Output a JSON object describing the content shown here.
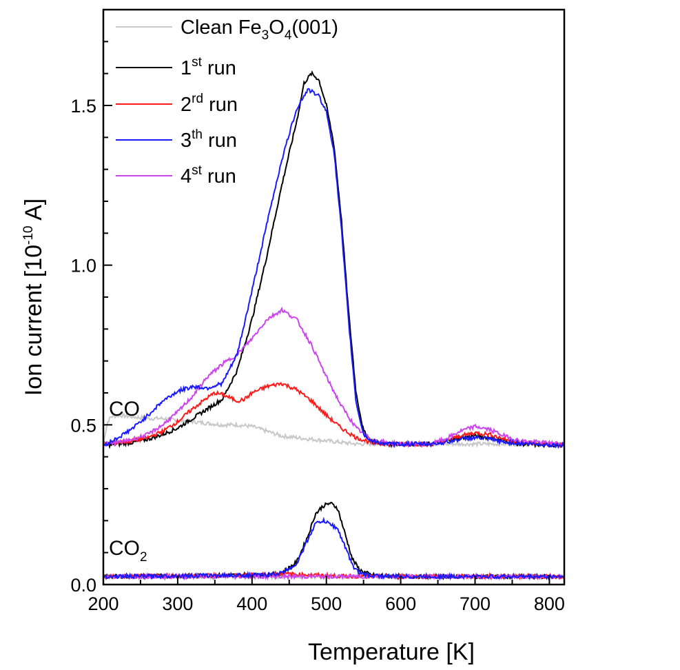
{
  "chart_data": {
    "type": "line",
    "xlabel": "Temperature [K]",
    "ylabel": {
      "main": "Ion current [10",
      "exp": "-10",
      "unit": " A]"
    },
    "xlim": [
      200,
      820
    ],
    "ylim": [
      0.0,
      1.8
    ],
    "xticks": [
      "200",
      "300",
      "400",
      "500",
      "600",
      "700",
      "800"
    ],
    "yticks": [
      "0.0",
      "0.5",
      "1.0",
      "1.5"
    ],
    "grid": false,
    "legend_position": "top-left",
    "annotations": {
      "co": "CO",
      "co2": {
        "base": "CO",
        "sub": "2"
      }
    },
    "series": [
      {
        "key": "clean",
        "legend": {
          "prefix": "Clean Fe",
          "s1": "3",
          "mid": "O",
          "s2": "4",
          "suffix": "(001)"
        },
        "color": "#c8c8c8",
        "co": [
          [
            200,
            0.44
          ],
          [
            203,
            0.48
          ],
          [
            206,
            0.51
          ],
          [
            210,
            0.525
          ],
          [
            220,
            0.53
          ],
          [
            240,
            0.525
          ],
          [
            260,
            0.52
          ],
          [
            280,
            0.52
          ],
          [
            300,
            0.515
          ],
          [
            320,
            0.51
          ],
          [
            340,
            0.505
          ],
          [
            360,
            0.5
          ],
          [
            380,
            0.5
          ],
          [
            400,
            0.495
          ],
          [
            420,
            0.48
          ],
          [
            440,
            0.465
          ],
          [
            460,
            0.46
          ],
          [
            480,
            0.455
          ],
          [
            500,
            0.45
          ],
          [
            520,
            0.445
          ],
          [
            540,
            0.44
          ],
          [
            560,
            0.44
          ],
          [
            600,
            0.44
          ],
          [
            650,
            0.44
          ],
          [
            700,
            0.44
          ],
          [
            750,
            0.44
          ],
          [
            820,
            0.438
          ]
        ],
        "co2": [
          [
            200,
            0.025
          ],
          [
            820,
            0.025
          ]
        ]
      },
      {
        "key": "run1",
        "legend": {
          "prefix": "1",
          "sup": "st",
          "suffix": " run"
        },
        "color": "#000000",
        "co": [
          [
            200,
            0.435
          ],
          [
            220,
            0.44
          ],
          [
            240,
            0.445
          ],
          [
            260,
            0.455
          ],
          [
            280,
            0.47
          ],
          [
            300,
            0.49
          ],
          [
            320,
            0.52
          ],
          [
            340,
            0.55
          ],
          [
            360,
            0.58
          ],
          [
            380,
            0.67
          ],
          [
            400,
            0.83
          ],
          [
            420,
            1.03
          ],
          [
            440,
            1.25
          ],
          [
            460,
            1.45
          ],
          [
            470,
            1.57
          ],
          [
            480,
            1.6
          ],
          [
            490,
            1.58
          ],
          [
            500,
            1.5
          ],
          [
            510,
            1.38
          ],
          [
            520,
            1.15
          ],
          [
            530,
            0.85
          ],
          [
            540,
            0.6
          ],
          [
            550,
            0.48
          ],
          [
            560,
            0.45
          ],
          [
            580,
            0.44
          ],
          [
            600,
            0.44
          ],
          [
            640,
            0.44
          ],
          [
            660,
            0.45
          ],
          [
            680,
            0.46
          ],
          [
            700,
            0.465
          ],
          [
            720,
            0.46
          ],
          [
            740,
            0.45
          ],
          [
            760,
            0.44
          ],
          [
            820,
            0.435
          ]
        ],
        "co2": [
          [
            200,
            0.025
          ],
          [
            420,
            0.03
          ],
          [
            440,
            0.035
          ],
          [
            460,
            0.07
          ],
          [
            475,
            0.15
          ],
          [
            485,
            0.22
          ],
          [
            495,
            0.245
          ],
          [
            505,
            0.255
          ],
          [
            515,
            0.24
          ],
          [
            525,
            0.16
          ],
          [
            535,
            0.08
          ],
          [
            545,
            0.045
          ],
          [
            560,
            0.03
          ],
          [
            600,
            0.025
          ],
          [
            820,
            0.025
          ]
        ]
      },
      {
        "key": "run2",
        "legend": {
          "prefix": "2",
          "sup": "rd",
          "suffix": " run"
        },
        "color": "#ff1a1a",
        "co": [
          [
            200,
            0.44
          ],
          [
            220,
            0.445
          ],
          [
            240,
            0.45
          ],
          [
            260,
            0.46
          ],
          [
            280,
            0.48
          ],
          [
            300,
            0.51
          ],
          [
            320,
            0.55
          ],
          [
            340,
            0.585
          ],
          [
            350,
            0.6
          ],
          [
            360,
            0.595
          ],
          [
            370,
            0.585
          ],
          [
            380,
            0.575
          ],
          [
            390,
            0.58
          ],
          [
            400,
            0.6
          ],
          [
            420,
            0.62
          ],
          [
            440,
            0.63
          ],
          [
            460,
            0.61
          ],
          [
            480,
            0.575
          ],
          [
            500,
            0.53
          ],
          [
            520,
            0.49
          ],
          [
            540,
            0.46
          ],
          [
            560,
            0.445
          ],
          [
            580,
            0.44
          ],
          [
            600,
            0.44
          ],
          [
            640,
            0.44
          ],
          [
            660,
            0.45
          ],
          [
            680,
            0.465
          ],
          [
            700,
            0.475
          ],
          [
            720,
            0.47
          ],
          [
            740,
            0.455
          ],
          [
            760,
            0.445
          ],
          [
            820,
            0.438
          ]
        ],
        "co2": [
          [
            200,
            0.025
          ],
          [
            400,
            0.03
          ],
          [
            440,
            0.034
          ],
          [
            480,
            0.03
          ],
          [
            520,
            0.026
          ],
          [
            820,
            0.025
          ]
        ]
      },
      {
        "key": "run3",
        "legend": {
          "prefix": "3",
          "sup": "th",
          "suffix": " run"
        },
        "color": "#1a1aff",
        "co": [
          [
            200,
            0.435
          ],
          [
            220,
            0.46
          ],
          [
            240,
            0.49
          ],
          [
            260,
            0.53
          ],
          [
            280,
            0.575
          ],
          [
            300,
            0.605
          ],
          [
            320,
            0.62
          ],
          [
            340,
            0.615
          ],
          [
            360,
            0.63
          ],
          [
            380,
            0.72
          ],
          [
            400,
            0.92
          ],
          [
            420,
            1.13
          ],
          [
            440,
            1.33
          ],
          [
            460,
            1.49
          ],
          [
            475,
            1.55
          ],
          [
            490,
            1.53
          ],
          [
            500,
            1.48
          ],
          [
            510,
            1.36
          ],
          [
            520,
            1.12
          ],
          [
            530,
            0.82
          ],
          [
            540,
            0.57
          ],
          [
            550,
            0.47
          ],
          [
            560,
            0.45
          ],
          [
            580,
            0.44
          ],
          [
            600,
            0.44
          ],
          [
            640,
            0.44
          ],
          [
            660,
            0.445
          ],
          [
            680,
            0.455
          ],
          [
            700,
            0.46
          ],
          [
            720,
            0.455
          ],
          [
            740,
            0.445
          ],
          [
            820,
            0.435
          ]
        ],
        "co2": [
          [
            200,
            0.025
          ],
          [
            420,
            0.03
          ],
          [
            440,
            0.036
          ],
          [
            460,
            0.065
          ],
          [
            475,
            0.14
          ],
          [
            485,
            0.19
          ],
          [
            495,
            0.2
          ],
          [
            505,
            0.19
          ],
          [
            515,
            0.175
          ],
          [
            525,
            0.12
          ],
          [
            535,
            0.06
          ],
          [
            545,
            0.035
          ],
          [
            560,
            0.028
          ],
          [
            600,
            0.025
          ],
          [
            820,
            0.025
          ]
        ]
      },
      {
        "key": "run4",
        "legend": {
          "prefix": "4",
          "sup": "st",
          "suffix": " run"
        },
        "color": "#cc44ee",
        "co": [
          [
            200,
            0.44
          ],
          [
            220,
            0.445
          ],
          [
            240,
            0.455
          ],
          [
            260,
            0.47
          ],
          [
            280,
            0.5
          ],
          [
            300,
            0.54
          ],
          [
            320,
            0.59
          ],
          [
            340,
            0.65
          ],
          [
            360,
            0.69
          ],
          [
            380,
            0.72
          ],
          [
            400,
            0.77
          ],
          [
            420,
            0.83
          ],
          [
            440,
            0.86
          ],
          [
            460,
            0.83
          ],
          [
            480,
            0.75
          ],
          [
            500,
            0.65
          ],
          [
            520,
            0.56
          ],
          [
            540,
            0.49
          ],
          [
            560,
            0.455
          ],
          [
            580,
            0.445
          ],
          [
            600,
            0.44
          ],
          [
            640,
            0.44
          ],
          [
            660,
            0.455
          ],
          [
            680,
            0.48
          ],
          [
            700,
            0.495
          ],
          [
            720,
            0.485
          ],
          [
            740,
            0.465
          ],
          [
            760,
            0.45
          ],
          [
            820,
            0.44
          ]
        ],
        "co2": [
          [
            200,
            0.025
          ],
          [
            820,
            0.025
          ]
        ]
      }
    ]
  }
}
